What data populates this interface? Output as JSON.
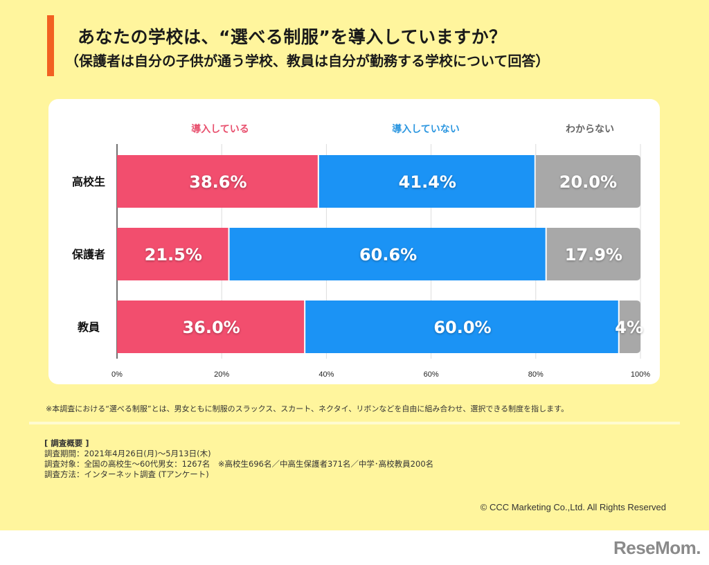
{
  "header": {
    "title": "あなたの学校は、“選べる制服”を導入していますか？",
    "subtitle": "（保護者は自分の子供が通う学校、教員は自分が勤務する学校について回答）",
    "accent_color": "#f26022"
  },
  "chart_data": {
    "type": "bar",
    "orientation": "horizontal",
    "stacked": true,
    "title": "あなたの学校は、“選べる制服”を導入していますか？",
    "categories": [
      "高校生",
      "保護者",
      "教員"
    ],
    "series": [
      {
        "name": "導入している",
        "color": "#f24e6e",
        "values": [
          38.6,
          21.5,
          36.0
        ],
        "labels": [
          "38.6%",
          "21.5%",
          "36.0%"
        ]
      },
      {
        "name": "導入していない",
        "color": "#1b93f5",
        "values": [
          41.4,
          60.6,
          60.0
        ],
        "labels": [
          "41.4%",
          "60.6%",
          "60.0%"
        ]
      },
      {
        "name": "わからない",
        "color": "#a8a8a8",
        "values": [
          20.0,
          17.9,
          4.0
        ],
        "labels": [
          "20.0%",
          "17.9%",
          "4%"
        ]
      }
    ],
    "legend_colors": [
      "#e8506e",
      "#2d97e0",
      "#666666"
    ],
    "xlim": [
      0,
      100
    ],
    "xticks": [
      "0%",
      "20%",
      "40%",
      "60%",
      "80%",
      "100%"
    ],
    "xlabel": "",
    "ylabel": "",
    "grid": true,
    "legend_placement": "top"
  },
  "footer": {
    "note": "※本調査における“選べる制服”とは、男女ともに制服のスラックス、スカート、ネクタイ、リボンなどを自由に組み合わせ、選択できる制度を指します。",
    "summary_heading": "[ 調査概要 ]",
    "summary_lines": [
      "調査期間：2021年4月26日(月)〜5月13日(木)",
      "調査対象：全国の高校生〜60代男女：1267名　※高校生696名／中高生保護者371名／中学･高校教員200名",
      "調査方法：インターネット調査 (Tアンケート)"
    ],
    "copyright": "© CCC Marketing Co.,Ltd. All Rights Reserved",
    "logo": "ReseMom."
  }
}
